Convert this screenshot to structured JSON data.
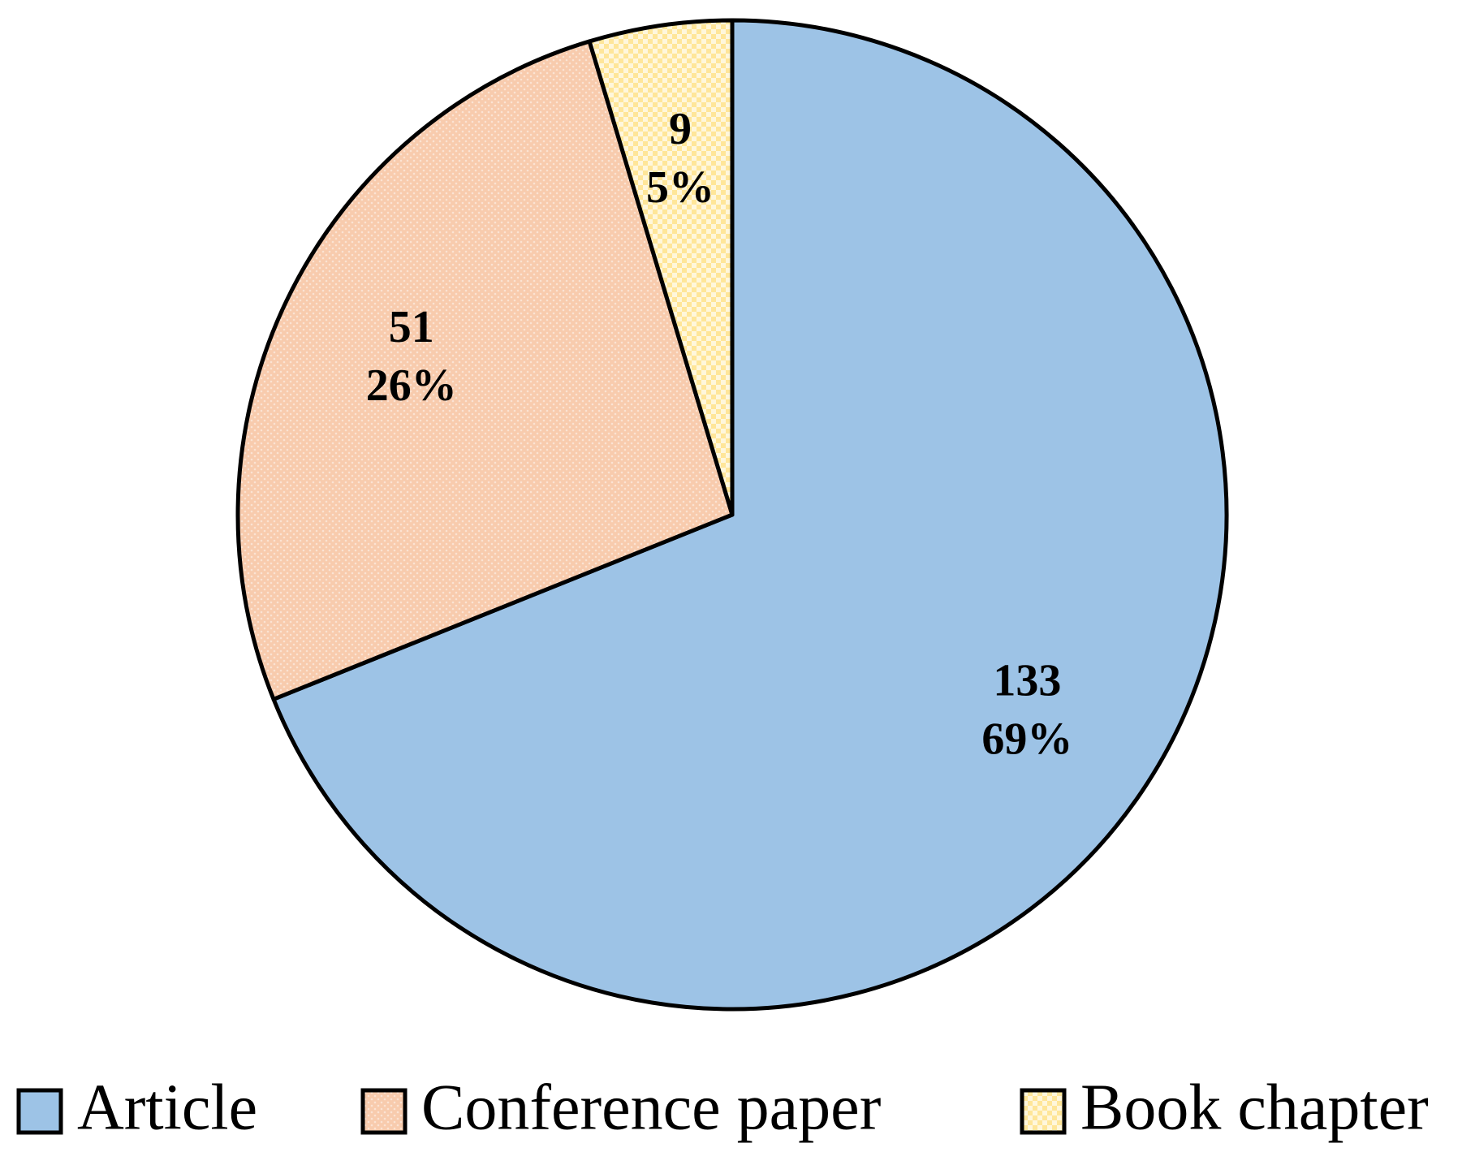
{
  "chart_data": {
    "type": "pie",
    "categories": [
      "Article",
      "Conference paper",
      "Book chapter"
    ],
    "values": [
      133,
      51,
      9
    ],
    "percentages": [
      69,
      26,
      5
    ],
    "percentage_labels": [
      "69%",
      "26%",
      "5%"
    ],
    "colors": [
      "#9dc3e6",
      "#f8cbad",
      "#ffe699"
    ],
    "legend": "bottom"
  }
}
